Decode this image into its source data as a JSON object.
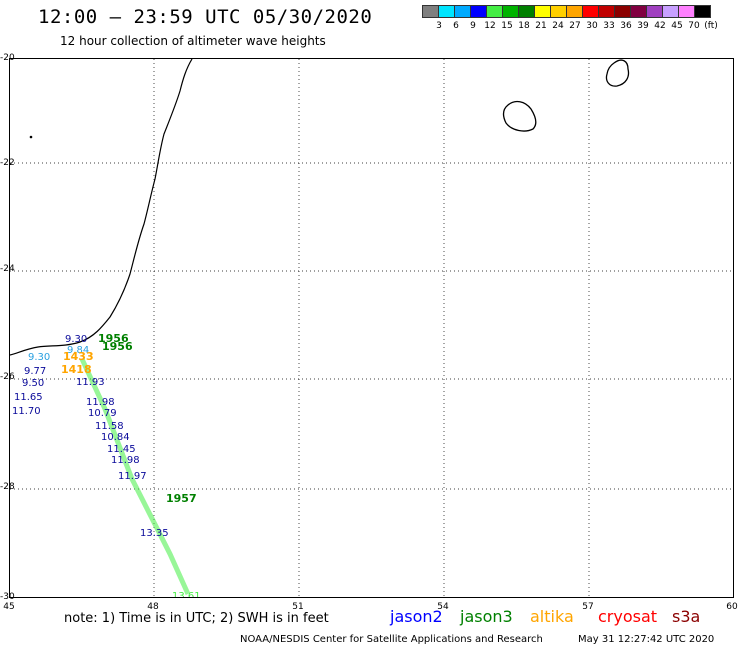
{
  "header": {
    "title": "12:00 – 23:59 UTC 05/30/2020",
    "subtitle": "12 hour collection of altimeter wave heights"
  },
  "legend": {
    "colors": [
      "#7f7f7f",
      "#00e5ff",
      "#00aaff",
      "#0000ff",
      "#44ee44",
      "#00b300",
      "#008000",
      "#ffff00",
      "#ffd000",
      "#ffa500",
      "#ff0000",
      "#c00000",
      "#8b0000",
      "#800040",
      "#a040c0",
      "#c8a0ff",
      "#ff80ff",
      "#000000"
    ],
    "tick_labels": [
      "3",
      "6",
      "9",
      "12",
      "15",
      "18",
      "21",
      "24",
      "27",
      "30",
      "33",
      "36",
      "39",
      "42",
      "45",
      "70"
    ],
    "unit": "(ft)"
  },
  "axes": {
    "y_labels": [
      "-20",
      "-22",
      "-24",
      "-26",
      "-28",
      "-30"
    ],
    "x_labels": [
      "45",
      "48",
      "51",
      "54",
      "57",
      "60"
    ]
  },
  "observations": [
    {
      "text": "9.30",
      "color": "#0a0a9a"
    },
    {
      "text": "1956",
      "color": "#008000"
    },
    {
      "text": "1956",
      "color": "#008000"
    },
    {
      "text": "9.30",
      "color": "#2aa0e0"
    },
    {
      "text": "9.84",
      "color": "#2aa0e0"
    },
    {
      "text": "1433",
      "color": "#ffa500"
    },
    {
      "text": "9.77",
      "color": "#0a0a9a"
    },
    {
      "text": "1418",
      "color": "#ffa500"
    },
    {
      "text": "9.50",
      "color": "#0a0a9a"
    },
    {
      "text": "11.93",
      "color": "#0a0a9a"
    },
    {
      "text": "11.65",
      "color": "#0a0a9a"
    },
    {
      "text": "11.70",
      "color": "#0a0a9a"
    },
    {
      "text": "11.98",
      "color": "#0a0a9a"
    },
    {
      "text": "10.79",
      "color": "#0a0a9a"
    },
    {
      "text": "11.58",
      "color": "#0a0a9a"
    },
    {
      "text": "10.84",
      "color": "#0a0a9a"
    },
    {
      "text": "11.45",
      "color": "#0a0a9a"
    },
    {
      "text": "11.98",
      "color": "#0a0a9a"
    },
    {
      "text": "11.97",
      "color": "#0a0a9a"
    },
    {
      "text": "1957",
      "color": "#008000"
    },
    {
      "text": "13.35",
      "color": "#0a0a9a"
    },
    {
      "text": "13.61",
      "color": "#44ee44"
    }
  ],
  "footer": {
    "note": "note:  1) Time is in UTC;  2) SWH is in feet",
    "satellites": [
      {
        "name": "jason2",
        "color": "#0000ff"
      },
      {
        "name": "jason3",
        "color": "#008000"
      },
      {
        "name": "altika",
        "color": "#ffa500"
      },
      {
        "name": "cryosat",
        "color": "#ff0000"
      },
      {
        "name": "s3a",
        "color": "#8b0000"
      }
    ],
    "credit": "NOAA/NESDIS Center for Satellite Applications and Research",
    "timestamp": "May 31 12:27:42 UTC 2020"
  }
}
